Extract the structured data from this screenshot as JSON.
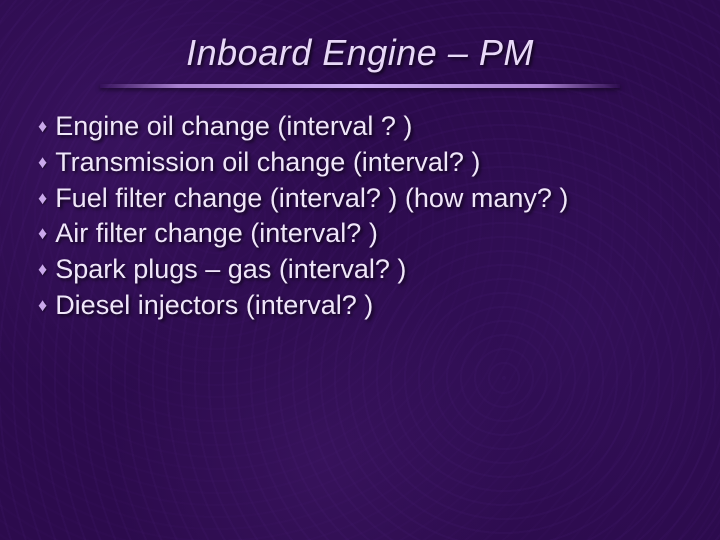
{
  "slide": {
    "title": "Inboard Engine – PM",
    "title_color": "#e8d8f8",
    "title_fontsize": 36,
    "title_italic": true,
    "underline_color": "#c9a8ea",
    "background_color": "#2c0b4d",
    "bullets": [
      {
        "text": "Engine oil change (interval ? )"
      },
      {
        "text": "Transmission oil change (interval? )"
      },
      {
        "text": "Fuel filter change (interval? ) (how many? )"
      },
      {
        "text": "Air filter change (interval? )"
      },
      {
        "text": "Spark plugs – gas (interval? )"
      },
      {
        "text": "Diesel injectors (interval? )"
      }
    ],
    "bullet_glyph": "♦",
    "bullet_color": "#c9a8ea",
    "text_color": "#f0e6fa",
    "text_fontsize": 27
  }
}
